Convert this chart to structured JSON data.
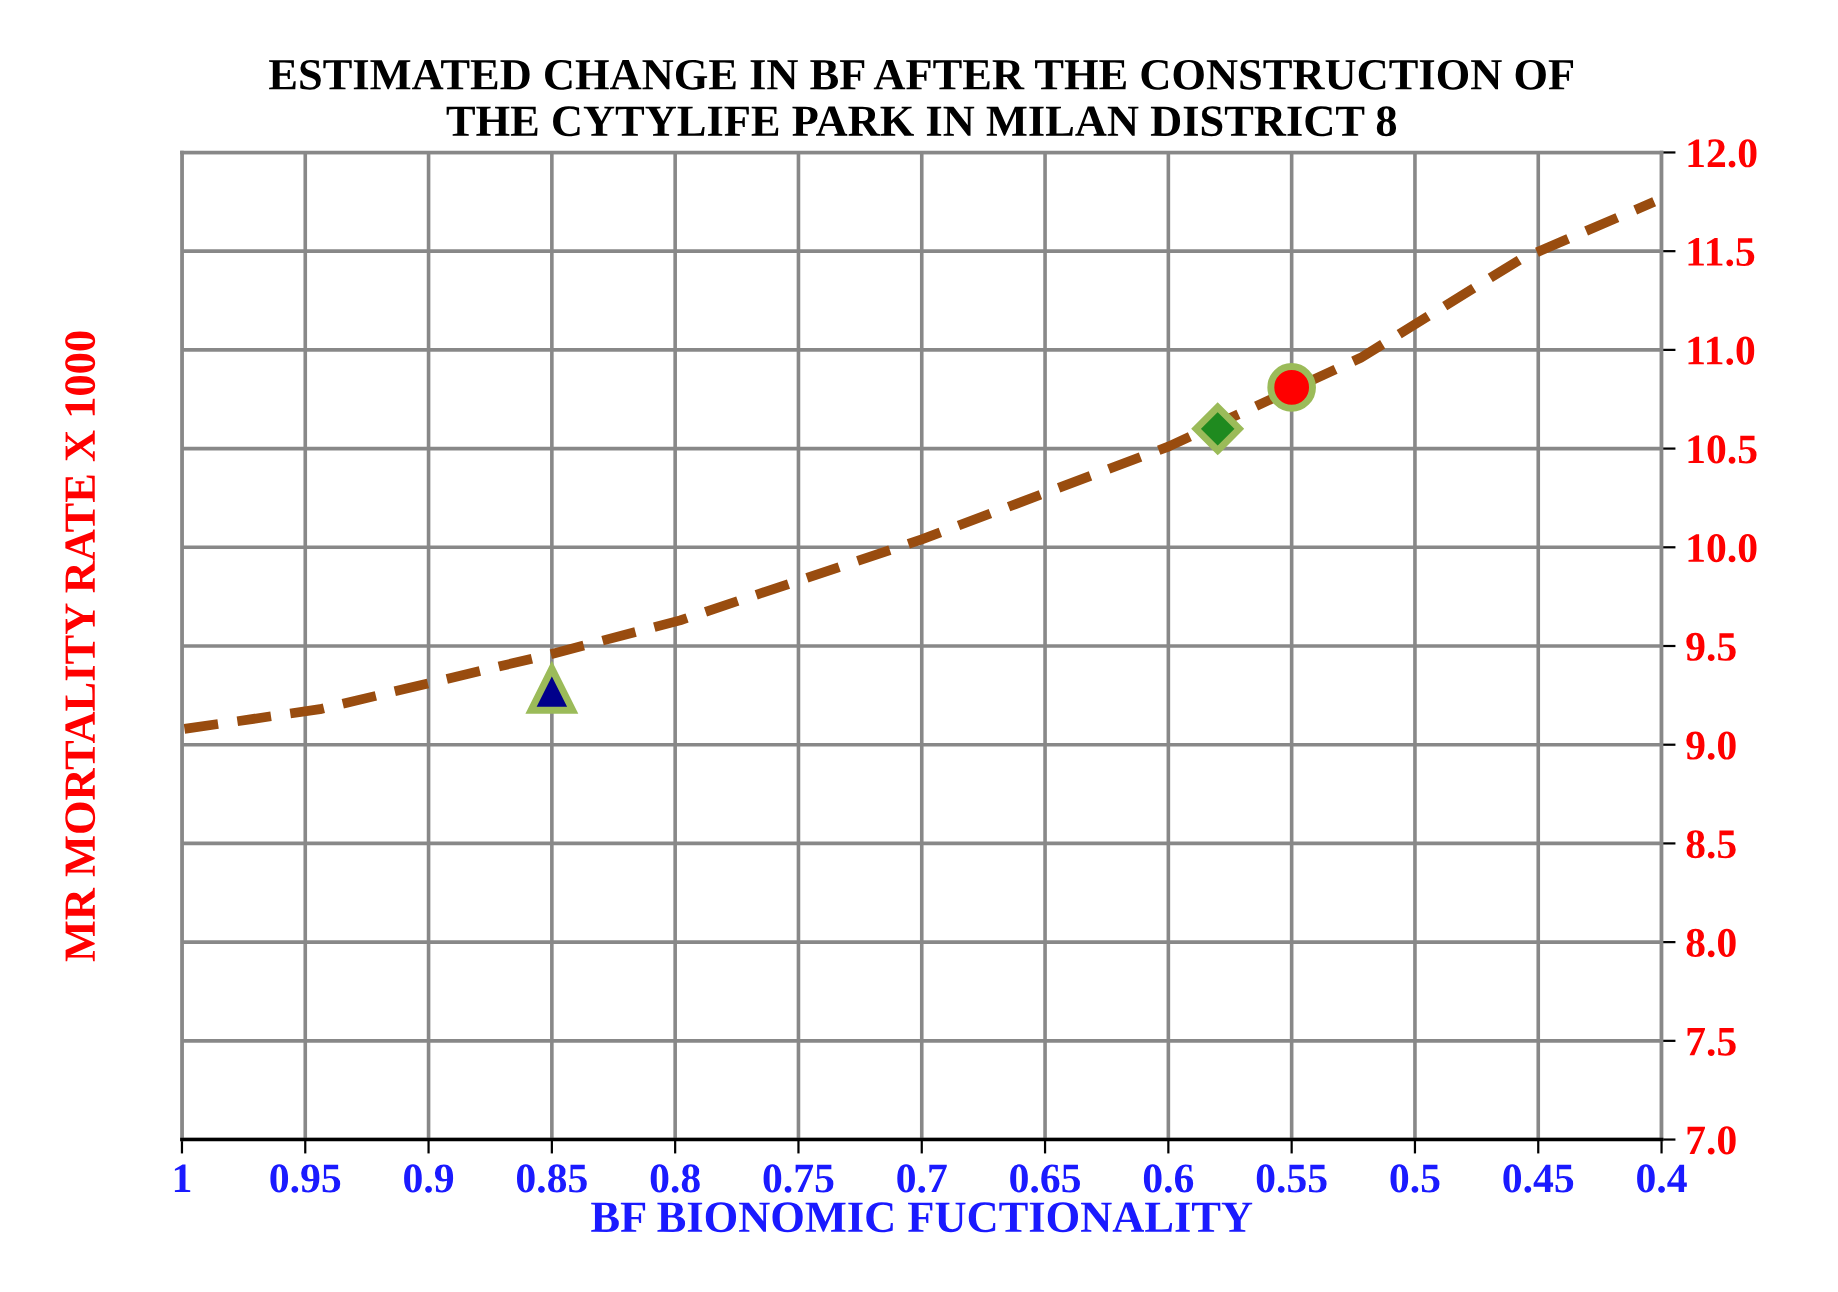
{
  "chart_data": {
    "type": "line",
    "title": "ESTIMATED CHANGE IN BF AFTER THE CONSTRUCTION OF\nTHE CYTYLIFE PARK IN MILAN DISTRICT 8",
    "xlabel": "BF BIONOMIC FUCTIONALITY",
    "ylabel": "MR MORTALITY RATE X 1000",
    "xlim": [
      1,
      0.4
    ],
    "xticks": [
      1,
      0.95,
      0.9,
      0.85,
      0.8,
      0.75,
      0.7,
      0.65,
      0.6,
      0.55,
      0.5,
      0.45,
      0.4
    ],
    "ylim": [
      7.0,
      12.0
    ],
    "yticks": [
      {
        "value": 7.0,
        "label": "7.0"
      },
      {
        "value": 7.5,
        "label": "7.5"
      },
      {
        "value": 8.0,
        "label": "8.0"
      },
      {
        "value": 8.5,
        "label": "8.5"
      },
      {
        "value": 9.0,
        "label": "9.0"
      },
      {
        "value": 9.5,
        "label": "9.5"
      },
      {
        "value": 10.0,
        "label": "10.0"
      },
      {
        "value": 10.5,
        "label": "10.5"
      },
      {
        "value": 11.0,
        "label": "11.0"
      },
      {
        "value": 11.5,
        "label": "11.5"
      },
      {
        "value": 12.0,
        "label": "12.0"
      }
    ],
    "grid": true,
    "legend": false,
    "series": [
      {
        "line_style": "dashed",
        "marker": "none",
        "color": "#994c0f",
        "x": [
          0.999,
          0.944,
          0.85,
          0.798,
          0.7,
          0.6,
          0.522,
          0.457,
          0.403
        ],
        "values": [
          9.08,
          9.18,
          9.46,
          9.63,
          10.04,
          10.51,
          10.96,
          11.46,
          11.75
        ]
      },
      {
        "type": "scatter",
        "marker": "triangle",
        "color": "#00008b",
        "x": [
          0.85
        ],
        "values": [
          9.28
        ]
      },
      {
        "type": "scatter",
        "marker": "diamond",
        "color": "#1f8a1f",
        "x": [
          0.58
        ],
        "values": [
          10.6
        ]
      },
      {
        "type": "scatter",
        "marker": "circle",
        "color": "#ff0000",
        "x": [
          0.55
        ],
        "values": [
          10.81
        ]
      }
    ]
  }
}
